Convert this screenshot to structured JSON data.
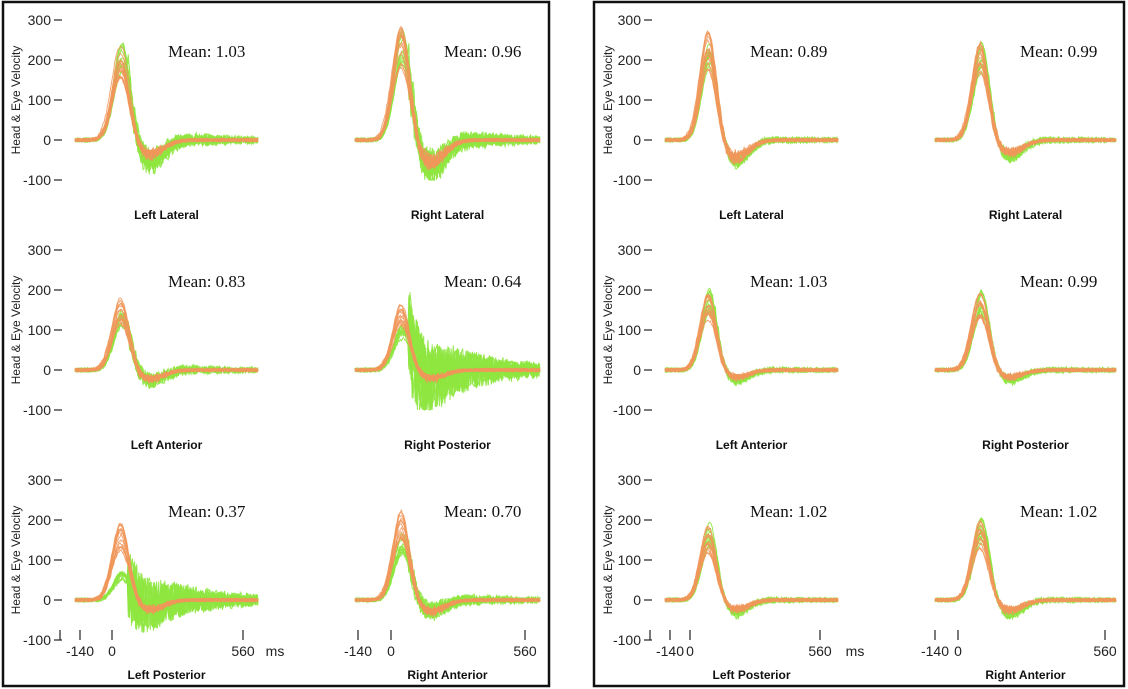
{
  "colors": {
    "eye": "#8ee53f",
    "head": "#f0965a",
    "head_dark": "#c8874a",
    "frame": "#111111"
  },
  "chart_data": [
    {
      "type": "line",
      "ylabel": "Head & Eye Velocity",
      "y_ticks": [
        "300",
        "200",
        "100",
        "0",
        "-100"
      ],
      "x_tick_labels": [
        "-140",
        "0",
        "560",
        "ms",
        "560"
      ],
      "xlim": [
        -140,
        560
      ],
      "ylim": [
        -100,
        300
      ],
      "series": [
        "head",
        "eye"
      ],
      "panels": [
        {
          "label": "Left Lateral",
          "mean": "Mean: 1.03",
          "head_peak": 240,
          "eye_gain": 1.0,
          "eye_noise": 80,
          "overshoot": 0.25
        },
        {
          "label": "Right Lateral",
          "mean": "Mean: 0.96",
          "head_peak": 280,
          "eye_gain": 0.95,
          "eye_noise": 110,
          "overshoot": 0.3
        },
        {
          "label": "Left Anterior",
          "mean": "Mean: 0.83",
          "head_peak": 180,
          "eye_gain": 0.85,
          "eye_noise": 50,
          "overshoot": 0.2
        },
        {
          "label": "Right Posterior",
          "mean": "Mean: 0.64",
          "head_peak": 170,
          "eye_gain": 0.65,
          "eye_noise": 260,
          "overshoot": 0.2
        },
        {
          "label": "Left Posterior",
          "mean": "Mean: 0.37",
          "head_peak": 190,
          "eye_gain": 0.35,
          "eye_noise": 190,
          "overshoot": 0.2
        },
        {
          "label": "Right Anterior",
          "mean": "Mean: 0.70",
          "head_peak": 220,
          "eye_gain": 0.75,
          "eye_noise": 60,
          "overshoot": 0.2
        }
      ]
    },
    {
      "type": "line",
      "ylabel": "Head & Eye Velocity",
      "y_ticks": [
        "300",
        "200",
        "100",
        "0",
        "-100"
      ],
      "x_tick_labels": [
        "-140",
        "0",
        "560",
        "ms",
        "-140",
        "0",
        "560"
      ],
      "xlim": [
        -140,
        560
      ],
      "ylim": [
        -100,
        300
      ],
      "series": [
        "head",
        "eye"
      ],
      "panels": [
        {
          "label": "Left Lateral",
          "mean": "Mean: 0.89",
          "head_peak": 270,
          "eye_gain": 0.9,
          "eye_noise": 30,
          "overshoot": 0.25
        },
        {
          "label": "Right Lateral",
          "mean": "Mean: 0.99",
          "head_peak": 240,
          "eye_gain": 1.0,
          "eye_noise": 25,
          "overshoot": 0.2
        },
        {
          "label": "Left Anterior",
          "mean": "Mean: 1.03",
          "head_peak": 190,
          "eye_gain": 1.03,
          "eye_noise": 20,
          "overshoot": 0.15
        },
        {
          "label": "Right Posterior",
          "mean": "Mean: 0.99",
          "head_peak": 190,
          "eye_gain": 1.0,
          "eye_noise": 20,
          "overshoot": 0.15
        },
        {
          "label": "Left Posterior",
          "mean": "Mean: 1.02",
          "head_peak": 185,
          "eye_gain": 1.02,
          "eye_noise": 20,
          "overshoot": 0.2
        },
        {
          "label": "Right Anterior",
          "mean": "Mean: 1.02",
          "head_peak": 195,
          "eye_gain": 1.02,
          "eye_noise": 20,
          "overshoot": 0.2
        }
      ]
    }
  ]
}
